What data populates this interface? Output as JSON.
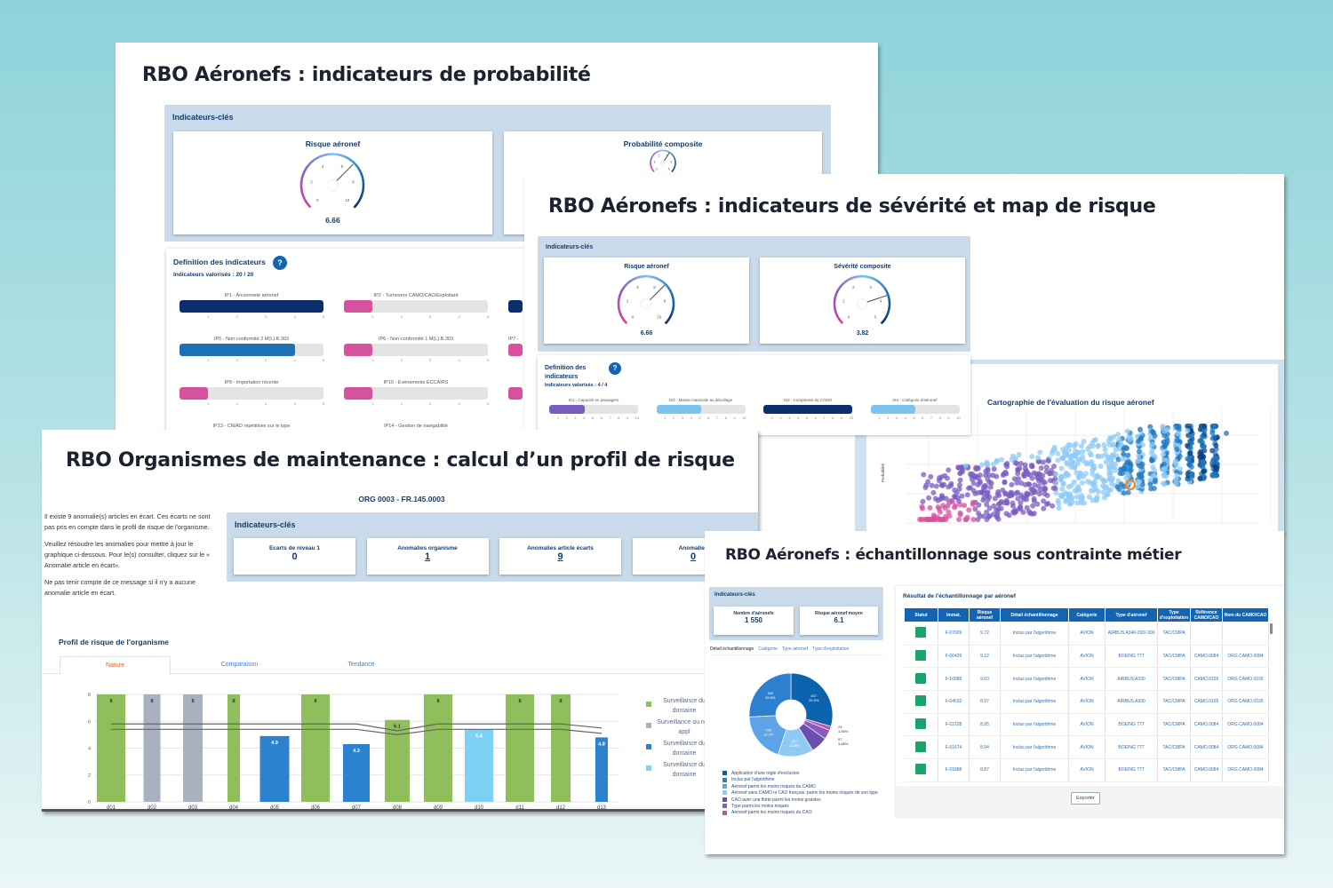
{
  "colors": {
    "navy": "#0a2f6b",
    "blue": "#1f6fb5",
    "mid_blue": "#2d82d0",
    "light_blue": "#7cc3f0",
    "pink": "#d6529f",
    "purple": "#7a5cc0",
    "green": "#8fbf5a",
    "gray": "#a9b1c1",
    "kc_bg": "#c9dbea"
  },
  "panel_probabilite": {
    "title": "RBO Aéronefs : indicateurs de probabilité",
    "kc_label": "Indicateurs-clés",
    "gauges": [
      {
        "title": "Risque aéronef",
        "value": 6.66,
        "value_text": "6.66",
        "max": 10,
        "ticks": [
          "0",
          "2",
          "4",
          "6",
          "8",
          "10"
        ]
      },
      {
        "title": "Probabilité composite",
        "max": 5,
        "value": 3.1,
        "ticks": [
          "0",
          "1",
          "2",
          "3",
          "4",
          "5"
        ]
      }
    ],
    "definition_title": "Definition des indicateurs",
    "help": "?",
    "valorises": "Indicateurs valorisés : 20 / 20",
    "indicators": [
      {
        "label": "IP1 - Ancienneté aéronef",
        "value": 5,
        "color": "#0a2f6b"
      },
      {
        "label": "IP2 - Turnovers CAMO/CAO/Exploitant",
        "value": 1,
        "color": "#d6529f"
      },
      {
        "label": "",
        "value": 5,
        "color": "#0a2f6b"
      },
      {
        "label": "IP5 - Non-conformité 2 M(L).B.303",
        "value": 4,
        "color": "#1f6fb5"
      },
      {
        "label": "IP6 - Non-conformité 1 M(L).B.303",
        "value": 1,
        "color": "#d6529f"
      },
      {
        "label": "IP7 -",
        "value": 1,
        "color": "#d6529f"
      },
      {
        "label": "IP9 - Importation récente",
        "value": 1,
        "color": "#d6529f"
      },
      {
        "label": "IP10 - Evénements ECCAIRS",
        "value": 1,
        "color": "#d6529f"
      },
      {
        "label": "",
        "value": 1,
        "color": "#d6529f"
      },
      {
        "label": "IP13 - CN/AD répétitives sur le type",
        "value": null,
        "color": ""
      },
      {
        "label": "IP14 - Gestion de navigabilité",
        "value": null,
        "color": ""
      }
    ],
    "scale_ticks": [
      "1",
      "2",
      "3",
      "4",
      "5"
    ]
  },
  "panel_severite": {
    "title": "RBO Aéronefs : indicateurs de sévérité et map de risque",
    "kc_label": "Indicateurs-clés",
    "gauges": [
      {
        "title": "Risque aéronef",
        "value": 6.66,
        "value_text": "6.66",
        "max": 10,
        "ticks": [
          "0",
          "2",
          "4",
          "6",
          "8",
          "10"
        ]
      },
      {
        "title": "Sévérité composite",
        "value": 3.82,
        "value_text": "3.82",
        "max": 5,
        "ticks": [
          "0",
          "1",
          "2",
          "3",
          "4",
          "5"
        ]
      }
    ],
    "definition_title": "Definition des indicateurs",
    "help": "?",
    "valorises": "Indicateurs valorisés : 4 / 4",
    "indicators": [
      {
        "label": "IS1 - Capacité en passagers",
        "value": 4,
        "color": "#7a5cc0"
      },
      {
        "label": "IS2 - Masse maximale au décollage",
        "value": 5,
        "color": "#7cc3f0"
      },
      {
        "label": "IS3 - Complexité du CAMO",
        "value": 10,
        "color": "#0a2f6b"
      },
      {
        "label": "IS4 - Catégorie d'aéronef",
        "value": 5,
        "color": "#7cc3f0"
      }
    ],
    "scale_ticks": [
      "1",
      "2",
      "3",
      "4",
      "5",
      "6",
      "7",
      "8",
      "9",
      "10"
    ],
    "map": {
      "title": "Cartographie de l'évaluation du risque aéronef",
      "ylabel": "Probabilité",
      "type": "scatter",
      "highlight_color": "#e8872a"
    }
  },
  "panel_organismes": {
    "title": "RBO Organismes de maintenance : calcul d’un profil de risque",
    "org": "ORG 0003 - FR.145.0003",
    "message": [
      "Il existe 9 anomalie(s) articles en écart. Ces écarts ne sont pas pris en compte dans le profil de risque de l'organisme.",
      "Veuillez résoudre les anomalies pour mettre à jour le graphique ci-dessous. Pour le(s) consulter, cliquez sur le « Anomalie article en écart».",
      "Ne pas tenir compte de ce message si il n'y a aucune anomalie article en écart."
    ],
    "kc_label": "Indicateurs-clés",
    "cards": [
      {
        "title": "Ecarts de niveau 1",
        "value": "0",
        "link": false
      },
      {
        "title": "Anomalies organisme",
        "value": "1",
        "link": true
      },
      {
        "title": "Anomalies article écarts",
        "value": "9",
        "link": true
      },
      {
        "title": "Anomalies",
        "value": "0",
        "link": true
      }
    ],
    "profile_title": "Profil de risque de l'organisme",
    "tabs": [
      {
        "label": "Nature",
        "active": true
      },
      {
        "label": "Comparaison",
        "active": false
      },
      {
        "label": "Tendance",
        "active": false
      }
    ],
    "legend": [
      {
        "label": "Surveillance du domaine",
        "color": "#8fbf5a"
      },
      {
        "label": "Surveillance ou non appl",
        "color": "#a9b1c1"
      },
      {
        "label": "Surveillance du domaine",
        "color": "#2d82d0"
      },
      {
        "label": "Surveillance du domaine",
        "color": "#7fd0f5"
      }
    ]
  },
  "chart_data": {
    "type": "bar",
    "categories": [
      "d01",
      "d02",
      "d03",
      "d04",
      "d05",
      "d06",
      "d07",
      "d08",
      "d09",
      "d10",
      "d11",
      "d12",
      "d13"
    ],
    "values": [
      8,
      8,
      8,
      8,
      4.9,
      8,
      4.3,
      6.1,
      8,
      5.4,
      8,
      8,
      4.8
    ],
    "data_labels": [
      "8",
      "8",
      "8",
      "8",
      "4.9",
      "8",
      "4.3",
      "6.1",
      "8",
      "5.4",
      "8",
      "8",
      "4.8"
    ],
    "bar_colors": [
      "#8fbf5a",
      "#a9b1c1",
      "#a9b1c1",
      "#8fbf5a",
      "#2d82d0",
      "#8fbf5a",
      "#2d82d0",
      "#8fbf5a",
      "#8fbf5a",
      "#7fd0f5",
      "#8fbf5a",
      "#8fbf5a",
      "#2d82d0"
    ],
    "lines": [
      {
        "values": [
          5.8,
          5.8,
          5.8,
          5.8,
          5.8,
          5.8,
          5.8,
          5.3,
          5.8,
          5.8,
          5.8,
          5.8,
          5.5
        ]
      },
      {
        "values": [
          5.4,
          5.4,
          5.4,
          5.4,
          5.4,
          5.4,
          5.4,
          5.0,
          5.4,
          5.4,
          5.4,
          5.4,
          5.1
        ]
      }
    ],
    "yticks": [
      "0",
      "2",
      "4",
      "6",
      "8"
    ],
    "ylim": [
      0,
      8
    ],
    "grid": true,
    "legend_position": "right"
  },
  "panel_echantillonnage": {
    "title": "RBO Aéronefs : échantillonnage sous contrainte métier",
    "kc_label": "Indicateurs-clés",
    "cards": [
      {
        "title": "Nombre d'aéronefs",
        "value": "1 550"
      },
      {
        "title": "Risque aéronef moyen",
        "value": "6.1"
      }
    ],
    "tabs": [
      {
        "label": "Détail échantillonnage",
        "active": true
      },
      {
        "label": "Catégorie",
        "active": false
      },
      {
        "label": "Type aéronef",
        "active": false
      },
      {
        "label": "Type d'exploitation",
        "active": false
      }
    ],
    "donut": [
      {
        "label": "Application d'une règle d'exclusion",
        "value": 457,
        "text": "457",
        "pct": "29.5%",
        "color": "#0b62ad"
      },
      {
        "label": "Aéronef parmi les moins risqués du CAO",
        "value": 24,
        "text": "24",
        "pct": "1.55%",
        "color": "#c452a0"
      },
      {
        "label": "Type parmi les moins risqués",
        "value": 57,
        "text": "57",
        "pct": "3.68%",
        "color": "#8a5cc0"
      },
      {
        "label": "CAO avec une flotte parmi les moins grandes",
        "value": 101,
        "text": "",
        "pct": "",
        "color": "#6a4fb0"
      },
      {
        "label": "Aéronef sans CAMO ni CAO français, parmi les moins risqués de son type",
        "value": 213,
        "text": "213",
        "pct": "13.8%",
        "color": "#8fcaf5"
      },
      {
        "label": "Aéronef parmi les moins risqués du CAMO",
        "value": 298,
        "text": "298",
        "pct": "19.2%",
        "color": "#5ea3e6"
      },
      {
        "label": "Inclus par l'algorithme",
        "value": 400,
        "text": "400",
        "pct": "25.8%",
        "color": "#2d7fcf"
      }
    ],
    "legend_order": [
      0,
      6,
      5,
      4,
      3,
      2,
      1
    ],
    "table_title": "Résultat de l'échantillonnage par aéronef",
    "columns": [
      "Statut",
      "Immat.",
      "Risque aéronef",
      "Détail échantillonnage",
      "Catégorie",
      "Type d'aéronef",
      "Type d'exploitation",
      "Référence CAMO/CAO",
      "Nom du CAMO/CAO"
    ],
    "rows": [
      [
        "",
        "F-07609",
        "9.72",
        "Inclus par l'algorithme",
        "AVION",
        "AIRBUS A340-200/-300",
        "TAC/CMPA",
        "",
        ""
      ],
      [
        "",
        "F-06429",
        "9.12",
        "Inclus par l'algorithme",
        "AVION",
        "BOEING 777",
        "TAC/CMPA",
        "CAMO.0084",
        "ORG CAMO.0084"
      ],
      [
        "",
        "F-10089",
        "9.03",
        "Inclus par l'algorithme",
        "AVION",
        "AIRBUS A330",
        "TAC/CMPA",
        "CAMO.0105",
        "ORG CAMO.0105"
      ],
      [
        "",
        "F-04532",
        "8.97",
        "Inclus par l'algorithme",
        "AVION",
        "AIRBUS A330",
        "TAC/CMPA",
        "CAMO.0105",
        "ORG CAMO.0105"
      ],
      [
        "",
        "F-02128",
        "8.95",
        "Inclus par l'algorithme",
        "AVION",
        "BOEING 777",
        "TAC/CMPA",
        "CAMO.0084",
        "ORG CAMO.0084"
      ],
      [
        "",
        "F-01674",
        "8.94",
        "Inclus par l'algorithme",
        "AVION",
        "BOEING 777",
        "TAC/CMPA",
        "CAMO.0084",
        "ORG CAMO.0084"
      ],
      [
        "",
        "F-01888",
        "8.87",
        "Inclus par l'algorithme",
        "AVION",
        "BOEING 777",
        "TAC/CMPA",
        "CAMO.0084",
        "ORG CAMO.0084"
      ]
    ],
    "export_label": "Exporter"
  }
}
